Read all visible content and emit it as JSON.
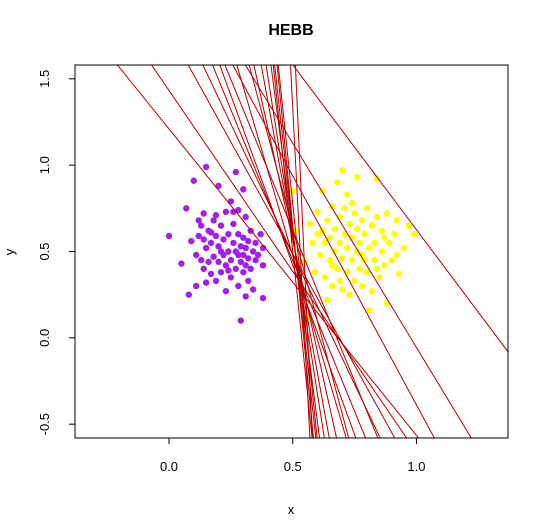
{
  "chart_data": {
    "type": "scatter",
    "title": "HEBB",
    "xlabel": "x",
    "ylabel": "y",
    "xlim": [
      -0.38,
      1.37
    ],
    "ylim": [
      -0.58,
      1.58
    ],
    "xticks": [
      0.0,
      0.5,
      1.0
    ],
    "xtick_labels": [
      "0.0",
      "0.5",
      "1.0"
    ],
    "yticks": [
      -0.5,
      0.0,
      0.5,
      1.0,
      1.5
    ],
    "ytick_labels": [
      "-0.5",
      "0.0",
      "0.5",
      "1.0",
      "1.5"
    ],
    "grid": false,
    "colors": {
      "class_a": "#a020f0",
      "class_b": "#ffff00",
      "lines": "#b40000",
      "frame": "#000000"
    },
    "series": [
      {
        "points": [
          [
            0.0,
            0.59
          ],
          [
            0.05,
            0.43
          ],
          [
            0.07,
            0.75
          ],
          [
            0.08,
            0.25
          ],
          [
            0.09,
            0.56
          ],
          [
            0.1,
            0.91
          ],
          [
            0.11,
            0.3
          ],
          [
            0.11,
            0.48
          ],
          [
            0.12,
            0.59
          ],
          [
            0.13,
            0.45
          ],
          [
            0.13,
            0.65
          ],
          [
            0.14,
            0.4
          ],
          [
            0.14,
            0.72
          ],
          [
            0.15,
            0.32
          ],
          [
            0.15,
            0.52
          ],
          [
            0.15,
            0.99
          ],
          [
            0.16,
            0.44
          ],
          [
            0.16,
            0.62
          ],
          [
            0.17,
            0.37
          ],
          [
            0.17,
            0.55
          ],
          [
            0.18,
            0.47
          ],
          [
            0.18,
            0.68
          ],
          [
            0.19,
            0.33
          ],
          [
            0.19,
            0.59
          ],
          [
            0.2,
            0.44
          ],
          [
            0.2,
            0.53
          ],
          [
            0.2,
            0.88
          ],
          [
            0.21,
            0.38
          ],
          [
            0.21,
            0.65
          ],
          [
            0.22,
            0.48
          ],
          [
            0.22,
            0.57
          ],
          [
            0.23,
            0.27
          ],
          [
            0.23,
            0.42
          ],
          [
            0.23,
            0.73
          ],
          [
            0.24,
            0.5
          ],
          [
            0.24,
            0.6
          ],
          [
            0.25,
            0.35
          ],
          [
            0.25,
            0.45
          ],
          [
            0.25,
            0.79
          ],
          [
            0.26,
            0.55
          ],
          [
            0.26,
            0.66
          ],
          [
            0.27,
            0.4
          ],
          [
            0.27,
            0.5
          ],
          [
            0.27,
            0.96
          ],
          [
            0.28,
            0.3
          ],
          [
            0.28,
            0.6
          ],
          [
            0.28,
            0.74
          ],
          [
            0.29,
            0.1
          ],
          [
            0.29,
            0.44
          ],
          [
            0.29,
            0.53
          ],
          [
            0.3,
            0.38
          ],
          [
            0.3,
            0.48
          ],
          [
            0.3,
            0.58
          ],
          [
            0.3,
            0.86
          ],
          [
            0.31,
            0.24
          ],
          [
            0.31,
            0.42
          ],
          [
            0.31,
            0.52
          ],
          [
            0.31,
            0.7
          ],
          [
            0.32,
            0.33
          ],
          [
            0.32,
            0.46
          ],
          [
            0.32,
            0.56
          ],
          [
            0.33,
            0.62
          ],
          [
            0.33,
            0.4
          ],
          [
            0.34,
            0.5
          ],
          [
            0.34,
            0.28
          ],
          [
            0.35,
            0.45
          ],
          [
            0.35,
            0.55
          ],
          [
            0.36,
            0.48
          ],
          [
            0.37,
            0.6
          ],
          [
            0.38,
            0.42
          ],
          [
            0.38,
            0.52
          ],
          [
            0.38,
            0.23
          ],
          [
            0.12,
            0.68
          ],
          [
            0.14,
            0.57
          ],
          [
            0.17,
            0.61
          ],
          [
            0.19,
            0.71
          ],
          [
            0.21,
            0.5
          ],
          [
            0.24,
            0.39
          ],
          [
            0.26,
            0.73
          ],
          [
            0.28,
            0.48
          ]
        ]
      },
      {
        "points": [
          [
            0.5,
            0.85
          ],
          [
            0.51,
            0.62
          ],
          [
            0.55,
            0.44
          ],
          [
            0.56,
            0.12
          ],
          [
            0.58,
            0.55
          ],
          [
            0.59,
            0.38
          ],
          [
            0.6,
            0.73
          ],
          [
            0.61,
            0.48
          ],
          [
            0.62,
            0.62
          ],
          [
            0.62,
            0.85
          ],
          [
            0.63,
            0.35
          ],
          [
            0.63,
            0.55
          ],
          [
            0.64,
            0.68
          ],
          [
            0.64,
            0.22
          ],
          [
            0.65,
            0.45
          ],
          [
            0.65,
            0.58
          ],
          [
            0.66,
            0.76
          ],
          [
            0.66,
            0.3
          ],
          [
            0.67,
            0.5
          ],
          [
            0.67,
            0.63
          ],
          [
            0.68,
            0.4
          ],
          [
            0.68,
            0.9
          ],
          [
            0.69,
            0.55
          ],
          [
            0.69,
            0.7
          ],
          [
            0.7,
            0.28
          ],
          [
            0.7,
            0.46
          ],
          [
            0.7,
            0.97
          ],
          [
            0.71,
            0.6
          ],
          [
            0.71,
            0.75
          ],
          [
            0.72,
            0.38
          ],
          [
            0.72,
            0.52
          ],
          [
            0.72,
            0.83
          ],
          [
            0.73,
            0.66
          ],
          [
            0.73,
            0.25
          ],
          [
            0.74,
            0.45
          ],
          [
            0.74,
            0.58
          ],
          [
            0.75,
            0.72
          ],
          [
            0.75,
            0.33
          ],
          [
            0.76,
            0.5
          ],
          [
            0.76,
            0.63
          ],
          [
            0.76,
            0.93
          ],
          [
            0.77,
            0.4
          ],
          [
            0.77,
            0.55
          ],
          [
            0.78,
            0.68
          ],
          [
            0.78,
            0.3
          ],
          [
            0.79,
            0.45
          ],
          [
            0.79,
            0.6
          ],
          [
            0.8,
            0.75
          ],
          [
            0.8,
            0.38
          ],
          [
            0.81,
            0.52
          ],
          [
            0.81,
            0.16
          ],
          [
            0.82,
            0.65
          ],
          [
            0.82,
            0.27
          ],
          [
            0.83,
            0.45
          ],
          [
            0.83,
            0.55
          ],
          [
            0.84,
            0.7
          ],
          [
            0.84,
            0.92
          ],
          [
            0.85,
            0.35
          ],
          [
            0.86,
            0.5
          ],
          [
            0.86,
            0.62
          ],
          [
            0.87,
            0.42
          ],
          [
            0.88,
            0.72
          ],
          [
            0.88,
            0.2
          ],
          [
            0.89,
            0.55
          ],
          [
            0.9,
            0.45
          ],
          [
            0.91,
            0.6
          ],
          [
            0.92,
            0.68
          ],
          [
            0.93,
            0.37
          ],
          [
            0.95,
            0.52
          ],
          [
            0.97,
            0.65
          ],
          [
            0.99,
            0.6
          ],
          [
            0.57,
            0.66
          ],
          [
            0.6,
            0.6
          ],
          [
            0.66,
            0.42
          ],
          [
            0.69,
            0.33
          ],
          [
            0.74,
            0.78
          ],
          [
            0.78,
            0.48
          ],
          [
            0.84,
            0.4
          ],
          [
            0.87,
            0.58
          ],
          [
            0.92,
            0.48
          ]
        ]
      }
    ],
    "lines": [
      [
        [
          0.44,
          1.6
        ],
        [
          0.6,
          -0.6
        ]
      ],
      [
        [
          0.42,
          1.6
        ],
        [
          0.58,
          -0.6
        ]
      ],
      [
        [
          0.41,
          1.6
        ],
        [
          0.61,
          -0.6
        ]
      ],
      [
        [
          0.425,
          1.6
        ],
        [
          0.595,
          -0.6
        ]
      ],
      [
        [
          0.435,
          1.6
        ],
        [
          0.585,
          -0.6
        ]
      ],
      [
        [
          0.49,
          1.6
        ],
        [
          0.57,
          -0.6
        ]
      ],
      [
        [
          0.51,
          1.6
        ],
        [
          0.58,
          -0.6
        ]
      ],
      [
        [
          0.39,
          1.6
        ],
        [
          0.63,
          -0.6
        ]
      ],
      [
        [
          0.37,
          1.6
        ],
        [
          0.65,
          -0.6
        ]
      ],
      [
        [
          0.34,
          1.6
        ],
        [
          0.68,
          -0.6
        ]
      ],
      [
        [
          0.32,
          1.6
        ],
        [
          0.73,
          -0.6
        ]
      ],
      [
        [
          0.27,
          1.6
        ],
        [
          0.72,
          -0.6
        ]
      ],
      [
        [
          0.2,
          1.6
        ],
        [
          0.76,
          -0.6
        ]
      ],
      [
        [
          0.13,
          1.6
        ],
        [
          0.86,
          -0.6
        ]
      ],
      [
        [
          0.07,
          1.6
        ],
        [
          0.92,
          -0.6
        ]
      ],
      [
        [
          -0.08,
          1.6
        ],
        [
          0.97,
          -0.6
        ]
      ],
      [
        [
          -0.22,
          1.6
        ],
        [
          1.02,
          -0.6
        ]
      ],
      [
        [
          0.49,
          1.6
        ],
        [
          1.38,
          -0.1
        ]
      ],
      [
        [
          0.3,
          1.6
        ],
        [
          1.23,
          -0.6
        ]
      ],
      [
        [
          0.25,
          1.6
        ],
        [
          1.08,
          -0.6
        ]
      ],
      [
        [
          0.22,
          1.6
        ],
        [
          0.85,
          -0.6
        ]
      ],
      [
        [
          0.17,
          1.6
        ],
        [
          0.8,
          -0.6
        ]
      ]
    ]
  }
}
